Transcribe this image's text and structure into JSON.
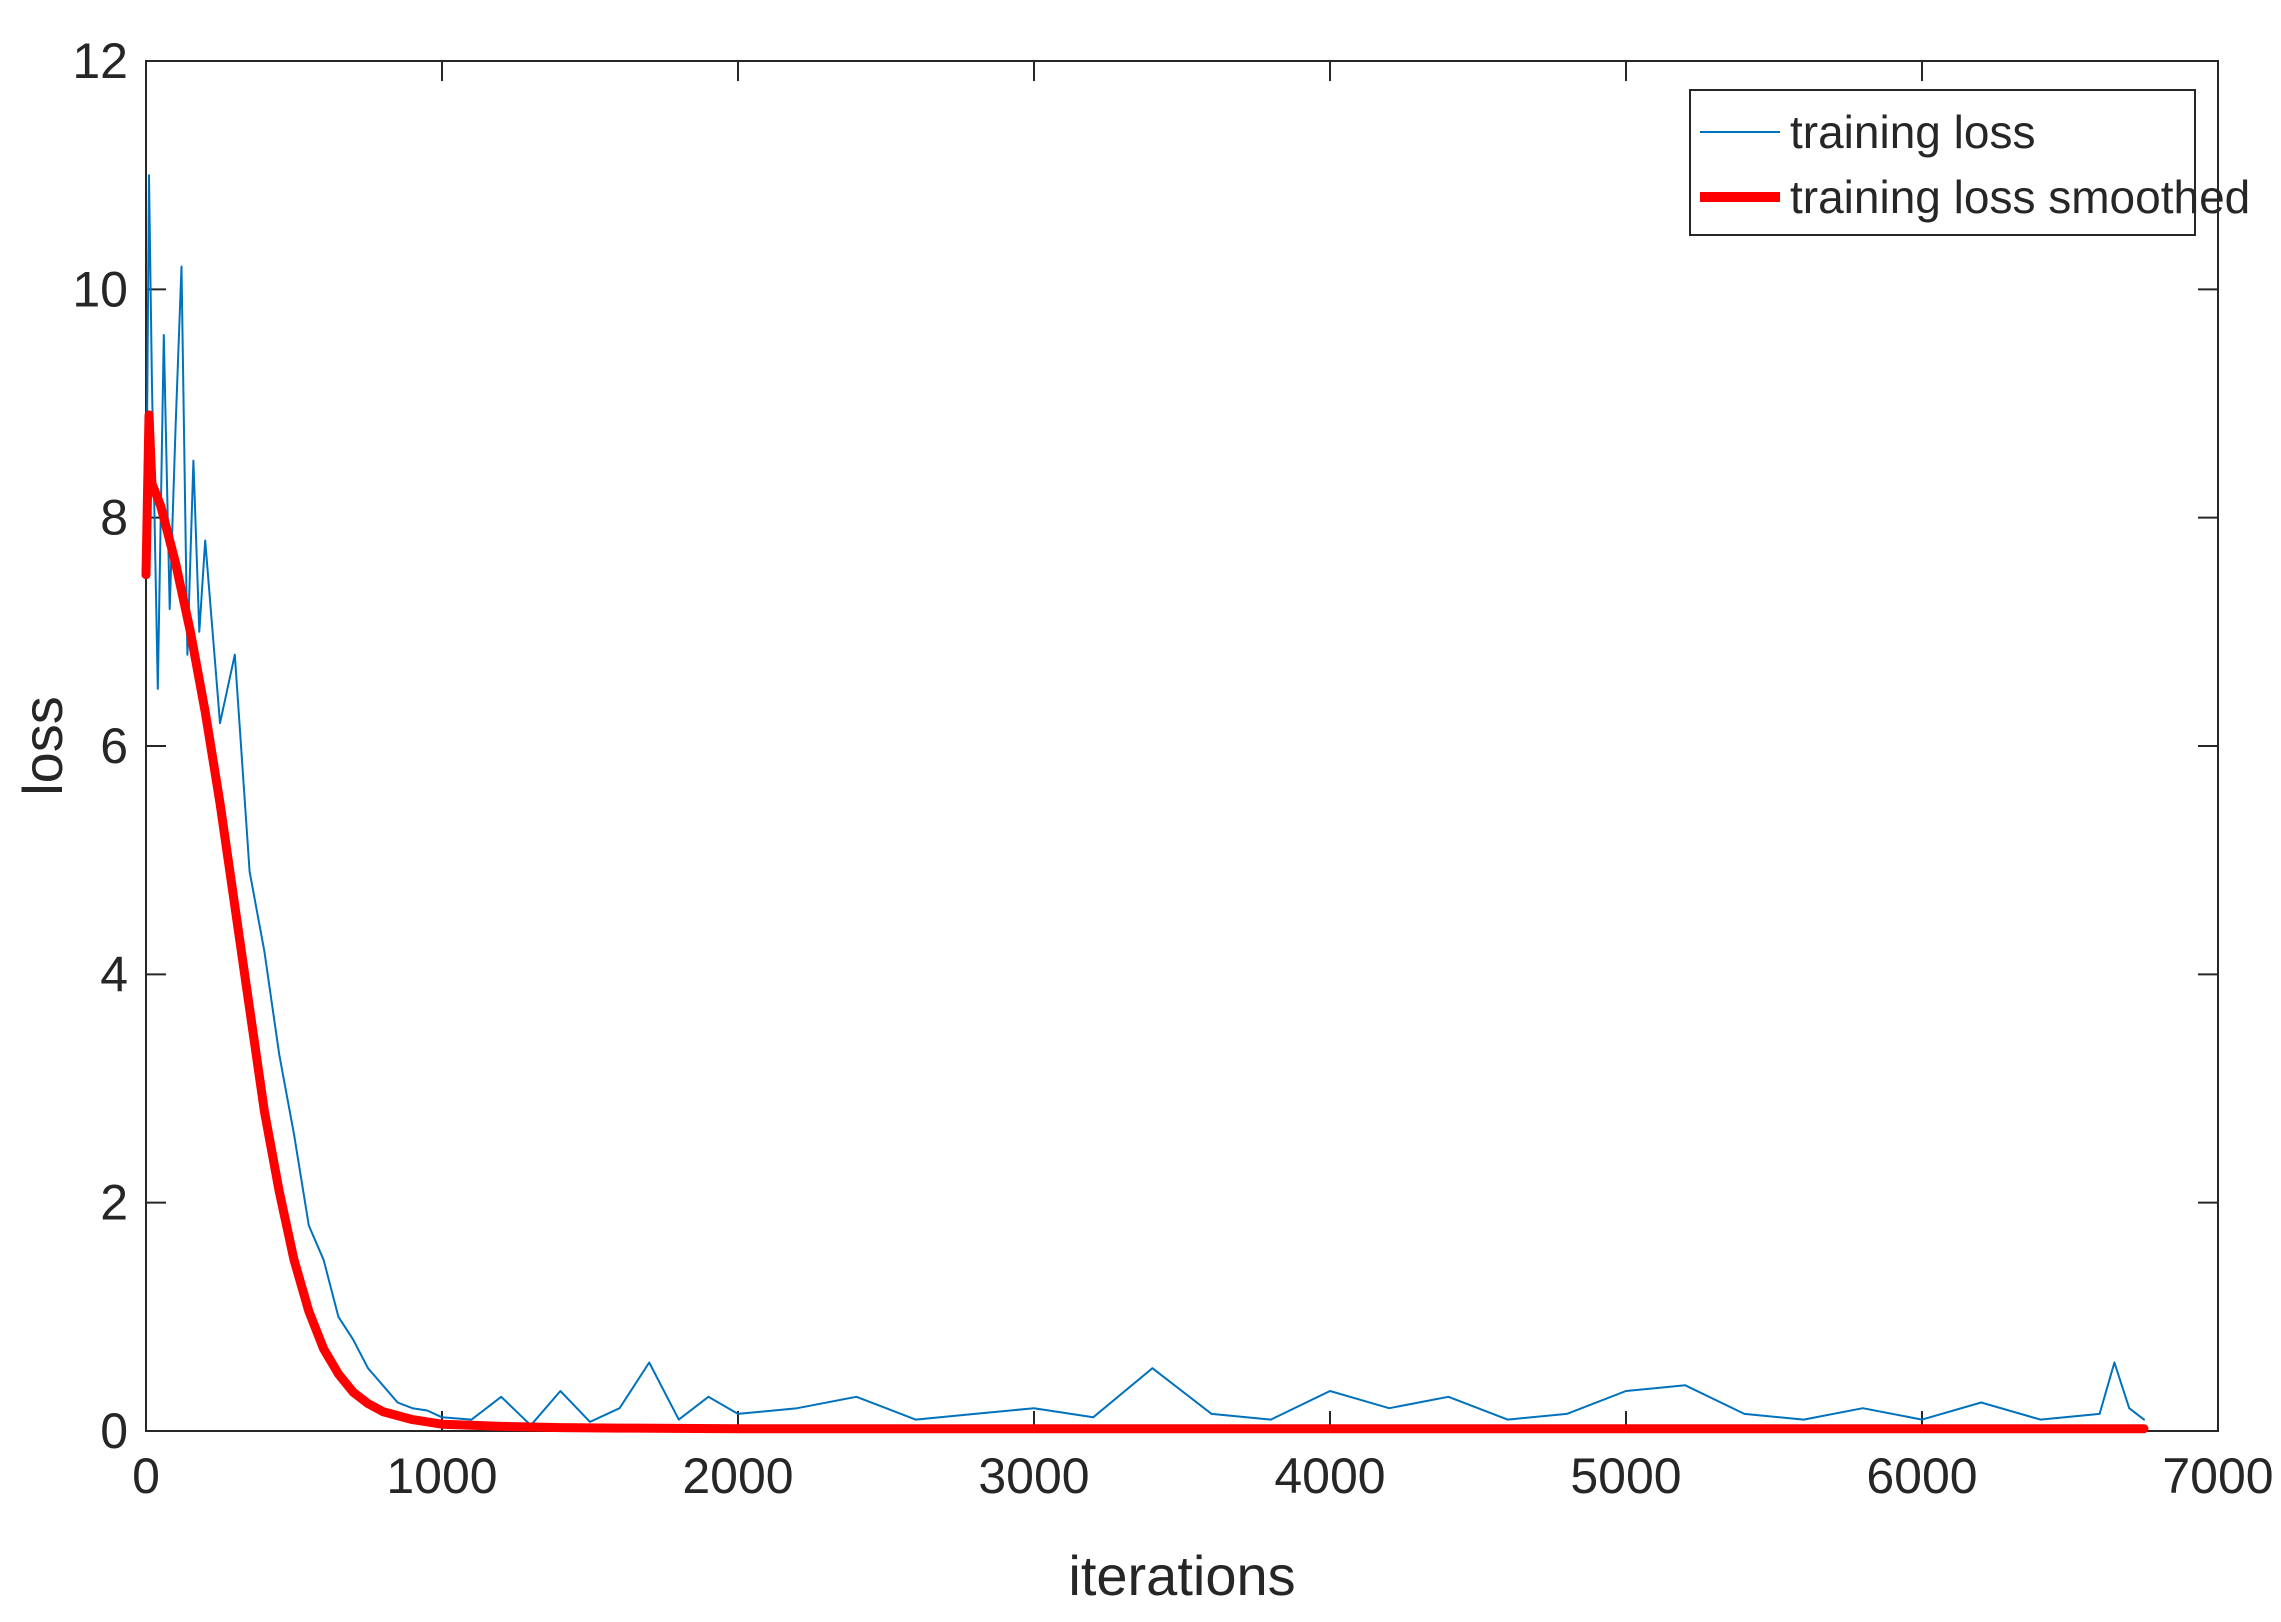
{
  "chart_data": {
    "type": "line",
    "title": "",
    "xlabel": "iterations",
    "ylabel": "loss",
    "xlim": [
      0,
      7000
    ],
    "ylim": [
      0,
      12
    ],
    "xticks": [
      0,
      1000,
      2000,
      3000,
      4000,
      5000,
      6000,
      7000
    ],
    "yticks": [
      0,
      2,
      4,
      6,
      8,
      10,
      12
    ],
    "xtick_labels": [
      "0",
      "1000",
      "2000",
      "3000",
      "4000",
      "5000",
      "6000",
      "7000"
    ],
    "ytick_labels": [
      "0",
      "2",
      "4",
      "6",
      "8",
      "10",
      "12"
    ],
    "grid": false,
    "legend_position": "top-right",
    "series": [
      {
        "name": "training loss",
        "color": "#0072BD",
        "x": [
          0,
          10,
          20,
          40,
          60,
          80,
          100,
          120,
          140,
          160,
          180,
          200,
          250,
          300,
          350,
          400,
          450,
          500,
          550,
          600,
          650,
          700,
          750,
          800,
          850,
          900,
          950,
          1000,
          1100,
          1200,
          1300,
          1400,
          1500,
          1600,
          1700,
          1800,
          1900,
          2000,
          2200,
          2400,
          2600,
          2800,
          3000,
          3200,
          3400,
          3600,
          3800,
          4000,
          4200,
          4400,
          4600,
          4800,
          5000,
          5200,
          5400,
          5600,
          5800,
          6000,
          6200,
          6400,
          6600,
          6650,
          6700,
          6750
        ],
        "y": [
          7.6,
          11.0,
          9.2,
          6.5,
          9.6,
          7.2,
          8.8,
          10.2,
          6.8,
          8.5,
          7.0,
          7.8,
          6.2,
          6.8,
          4.9,
          4.2,
          3.3,
          2.6,
          1.8,
          1.5,
          1.0,
          0.8,
          0.55,
          0.4,
          0.25,
          0.2,
          0.18,
          0.12,
          0.1,
          0.3,
          0.05,
          0.35,
          0.08,
          0.2,
          0.6,
          0.1,
          0.3,
          0.15,
          0.2,
          0.3,
          0.1,
          0.15,
          0.2,
          0.12,
          0.55,
          0.15,
          0.1,
          0.35,
          0.2,
          0.3,
          0.1,
          0.15,
          0.35,
          0.4,
          0.15,
          0.1,
          0.2,
          0.1,
          0.25,
          0.1,
          0.15,
          0.6,
          0.2,
          0.1
        ]
      },
      {
        "name": "training loss smoothed",
        "color": "#FF0000",
        "x": [
          0,
          10,
          20,
          50,
          100,
          150,
          200,
          250,
          300,
          350,
          400,
          450,
          500,
          550,
          600,
          650,
          700,
          750,
          800,
          900,
          1000,
          1100,
          1200,
          1400,
          1600,
          2000,
          3000,
          4000,
          5000,
          6000,
          6750
        ],
        "y": [
          7.5,
          8.9,
          8.3,
          8.1,
          7.6,
          7.0,
          6.3,
          5.5,
          4.6,
          3.7,
          2.8,
          2.1,
          1.5,
          1.05,
          0.72,
          0.5,
          0.34,
          0.24,
          0.17,
          0.1,
          0.06,
          0.05,
          0.04,
          0.03,
          0.025,
          0.02,
          0.02,
          0.02,
          0.02,
          0.02,
          0.02
        ]
      }
    ]
  }
}
